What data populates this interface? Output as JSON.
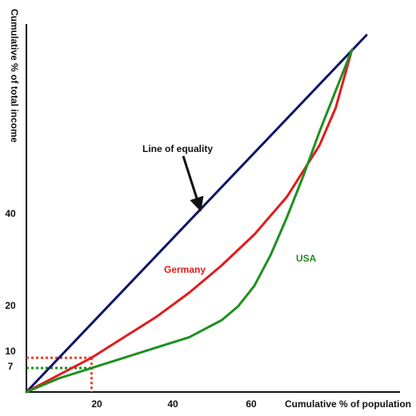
{
  "chart_data": {
    "type": "line",
    "xlabel": "Cumulative % of population",
    "ylabel": "Cumulative % of total income",
    "xlim": [
      0,
      100
    ],
    "ylim": [
      0,
      100
    ],
    "x_ticks": [
      20,
      40,
      60
    ],
    "y_ticks": [
      7,
      10,
      20,
      40
    ],
    "grid": false,
    "series": [
      {
        "name": "Line of equality",
        "color": "#0f1466",
        "x": [
          0,
          100
        ],
        "y": [
          0,
          100
        ]
      },
      {
        "name": "Germany",
        "color": "#e31b1b",
        "x": [
          0,
          10,
          20,
          30,
          40,
          50,
          60,
          70,
          80,
          90,
          95,
          100
        ],
        "y": [
          0,
          5,
          10,
          16,
          22,
          29,
          37,
          46,
          57,
          72,
          83,
          100
        ]
      },
      {
        "name": "USA",
        "color": "#1f8f1f",
        "x": [
          0,
          10,
          20,
          30,
          40,
          50,
          60,
          65,
          70,
          75,
          80,
          85,
          90,
          95,
          100
        ],
        "y": [
          0,
          4,
          7,
          10,
          13,
          16,
          21,
          25,
          31,
          40,
          51,
          63,
          76,
          88,
          100
        ]
      }
    ],
    "annotations": [
      {
        "text": "Line of equality",
        "color": "#000000",
        "arrow_to": {
          "x": 50,
          "y": 50
        }
      }
    ],
    "reference_lines": [
      {
        "series": "Germany",
        "x": 20,
        "y": 10,
        "color": "#e8442a"
      },
      {
        "series": "USA",
        "x": 20,
        "y": 7,
        "color": "#1f8f1f"
      }
    ]
  }
}
